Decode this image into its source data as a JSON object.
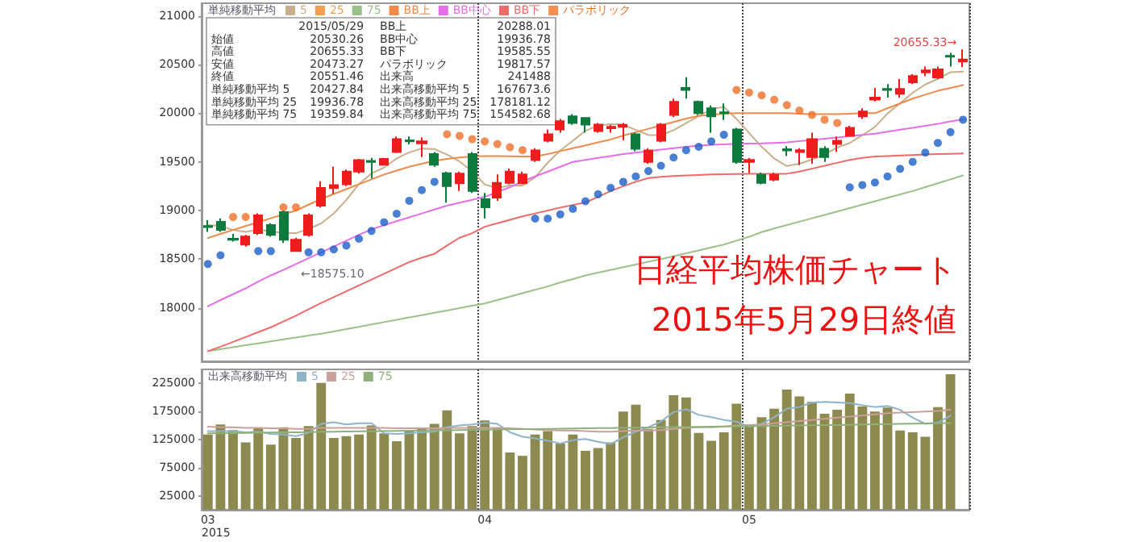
{
  "chart_data": [
    {
      "type": "candlestick",
      "title": "日経平均株価チャート",
      "subtitle": "2015年5月29日終値",
      "categories": [
        "03",
        null,
        null,
        null,
        null,
        null,
        null,
        null,
        null,
        null,
        null,
        null,
        null,
        null,
        null,
        null,
        null,
        null,
        null,
        null,
        null,
        null,
        "04",
        null,
        null,
        null,
        null,
        null,
        null,
        null,
        null,
        null,
        null,
        null,
        null,
        null,
        null,
        null,
        null,
        null,
        null,
        null,
        null,
        "05",
        null,
        null,
        null,
        null,
        null,
        null,
        null,
        null,
        null,
        null,
        null,
        null,
        null,
        null,
        null,
        null,
        null
      ],
      "ohlc": [
        [
          18840,
          18900,
          18780,
          18830
        ],
        [
          18883,
          18920,
          18780,
          18800
        ],
        [
          18710,
          18760,
          18680,
          18700
        ],
        [
          18650,
          18750,
          18630,
          18733
        ],
        [
          18767,
          18970,
          18750,
          18950
        ],
        [
          18850,
          18870,
          18730,
          18750
        ],
        [
          18983,
          19000,
          18667,
          18700
        ],
        [
          18583,
          18720,
          18575.1,
          18700
        ],
        [
          18750,
          18970,
          18730,
          18950
        ],
        [
          19050,
          19300,
          19030,
          19233
        ],
        [
          19230,
          19450,
          19170,
          19260
        ],
        [
          19270,
          19420,
          19250,
          19400
        ],
        [
          19400,
          19530,
          19380,
          19517
        ],
        [
          19510,
          19540,
          19330,
          19500
        ],
        [
          19470,
          19540,
          19460,
          19530
        ],
        [
          19600,
          19760,
          19590,
          19733
        ],
        [
          19720,
          19760,
          19680,
          19710
        ],
        [
          19690,
          19750,
          19550,
          19710
        ],
        [
          19580,
          19600,
          19450,
          19470
        ],
        [
          19383,
          19400,
          19080,
          19250
        ],
        [
          19280,
          19400,
          19200,
          19380
        ],
        [
          19580,
          19600,
          19180,
          19200
        ],
        [
          19116,
          19180,
          18920,
          19033
        ],
        [
          19133,
          19370,
          19100,
          19283
        ],
        [
          19283,
          19430,
          19270,
          19400
        ],
        [
          19280,
          19400,
          19270,
          19370
        ],
        [
          19517,
          19640,
          19500,
          19617
        ],
        [
          19717,
          19830,
          19700,
          19783
        ],
        [
          19833,
          19940,
          19800,
          19917
        ],
        [
          19967,
          19990,
          19880,
          19900
        ],
        [
          19950,
          19960,
          19800,
          19883
        ],
        [
          19817,
          19900,
          19800,
          19883
        ],
        [
          19845,
          19880,
          19800,
          19860
        ],
        [
          19860,
          19900,
          19720,
          19880
        ],
        [
          19783,
          19800,
          19610,
          19633
        ],
        [
          19500,
          19640,
          19480,
          19617
        ],
        [
          19717,
          19900,
          19700,
          19883
        ],
        [
          19983,
          20150,
          19960,
          20117
        ],
        [
          20260,
          20370,
          20150,
          20240
        ],
        [
          20117,
          20130,
          19980,
          20000
        ],
        [
          20050,
          20080,
          19800,
          19967
        ],
        [
          20010,
          20100,
          19930,
          20000
        ],
        [
          19833,
          19850,
          19480,
          19500
        ],
        [
          19500,
          19540,
          19383,
          19520
        ],
        [
          19367,
          19390,
          19270,
          19283
        ],
        [
          19317,
          19390,
          19300,
          19367
        ],
        [
          19630,
          19660,
          19560,
          19617
        ],
        [
          19600,
          19640,
          19467,
          19620
        ],
        [
          19550,
          19800,
          19480,
          19733
        ],
        [
          19633,
          19660,
          19500,
          19550
        ],
        [
          19683,
          19760,
          19600,
          19717
        ],
        [
          19767,
          19870,
          19760,
          19850
        ],
        [
          19967,
          20050,
          19940,
          20017
        ],
        [
          20140,
          20260,
          20120,
          20160
        ],
        [
          20250,
          20300,
          20160,
          20240
        ],
        [
          20200,
          20350,
          20160,
          20250
        ],
        [
          20317,
          20400,
          20300,
          20383
        ],
        [
          20420,
          20480,
          20380,
          20440
        ],
        [
          20367,
          20480,
          20350,
          20450
        ],
        [
          20590,
          20620,
          20480,
          20580
        ],
        [
          20530.26,
          20655.33,
          20473.27,
          20551.46
        ]
      ],
      "colors": [
        "#0d7a3e",
        "#0d7a3e",
        "#0d7a3e",
        "#ee1c1c",
        "#ee1c1c",
        "#0d7a3e",
        "#0d7a3e",
        "#ee1c1c",
        "#ee1c1c",
        "#ee1c1c",
        "#ee1c1c",
        "#ee1c1c",
        "#ee1c1c",
        "#0d7a3e",
        "#ee1c1c",
        "#ee1c1c",
        "#0d7a3e",
        "#ee1c1c",
        "#0d7a3e",
        "#0d7a3e",
        "#ee1c1c",
        "#0d7a3e",
        "#0d7a3e",
        "#ee1c1c",
        "#ee1c1c",
        "#ee1c1c",
        "#ee1c1c",
        "#ee1c1c",
        "#ee1c1c",
        "#0d7a3e",
        "#0d7a3e",
        "#ee1c1c",
        "#ee1c1c",
        "#ee1c1c",
        "#0d7a3e",
        "#ee1c1c",
        "#ee1c1c",
        "#ee1c1c",
        "#0d7a3e",
        "#0d7a3e",
        "#0d7a3e",
        "#0d7a3e",
        "#0d7a3e",
        "#ee1c1c",
        "#0d7a3e",
        "#ee1c1c",
        "#0d7a3e",
        "#ee1c1c",
        "#ee1c1c",
        "#0d7a3e",
        "#ee1c1c",
        "#ee1c1c",
        "#ee1c1c",
        "#ee1c1c",
        "#0d7a3e",
        "#ee1c1c",
        "#ee1c1c",
        "#ee1c1c",
        "#ee1c1c",
        "#0d7a3e",
        "#ee1c1c"
      ],
      "series": [
        {
          "type": "line",
          "name": "5",
          "color": "#c8b08c",
          "values": [
            18850,
            18840,
            18800,
            18780,
            18803,
            18787,
            18767,
            18767,
            18810,
            18867,
            18969,
            19109,
            19272,
            19382,
            19441,
            19536,
            19598,
            19637,
            19631,
            19575,
            19504,
            19402,
            19267,
            19229,
            19259,
            19257,
            19341,
            19491,
            19617,
            19717,
            19820,
            19873,
            19889,
            19881,
            19828,
            19775,
            19775,
            19826,
            19898,
            19971,
            20041,
            20065,
            19941,
            19797,
            19654,
            19534,
            19457,
            19481,
            19524,
            19577,
            19647,
            19694,
            19773,
            19859,
            19997,
            20103,
            20210,
            20295,
            20353,
            20421,
            20427.84
          ]
        },
        {
          "type": "line",
          "name": "25",
          "color": "#f0a050",
          "values": [
            null,
            null,
            null,
            null,
            null,
            null,
            null,
            null,
            null,
            null,
            null,
            null,
            null,
            null,
            null,
            null,
            null,
            null,
            null,
            null,
            null,
            null,
            null,
            null,
            null,
            null,
            null,
            null,
            null,
            null,
            null,
            null,
            null,
            null,
            null,
            null,
            null,
            null,
            null,
            null,
            null,
            null,
            null,
            null,
            null,
            null,
            null,
            null,
            null,
            null,
            null,
            null,
            null,
            null,
            null,
            null,
            null,
            null,
            null,
            null,
            null
          ]
        },
        {
          "type": "line",
          "name": "75",
          "color": "#9cc08a",
          "values": [
            17555,
            17575,
            17595,
            17615,
            17635,
            17655,
            17675,
            17695,
            17715,
            17733,
            17757,
            17781,
            17805,
            17829,
            17853,
            17877,
            17901,
            17925,
            17949,
            17973,
            17997,
            18021,
            18045,
            18080,
            18115,
            18150,
            18185,
            18220,
            18260,
            18296,
            18333,
            18361,
            18389,
            18417,
            18445,
            18473,
            18500,
            18530,
            18560,
            18590,
            18620,
            18650,
            18690,
            18730,
            18778,
            18815,
            18850,
            18885,
            18920,
            18955,
            18990,
            19025,
            19060,
            19095,
            19130,
            19165,
            19200,
            19240,
            19280,
            19320,
            19359.84
          ]
        },
        {
          "type": "line",
          "name": "BB上",
          "color": "#f08a4a",
          "values": [
            18717,
            18760,
            18800,
            18840,
            18880,
            18920,
            18960,
            19000,
            19060,
            19117,
            19170,
            19220,
            19270,
            19320,
            19370,
            19410,
            19450,
            19480,
            19510,
            19530,
            19545,
            19555,
            19560,
            19560,
            19558,
            19556,
            19555,
            19580,
            19610,
            19640,
            19670,
            19700,
            19730,
            19770,
            19805,
            19840,
            19875,
            19910,
            19945,
            19972,
            19985,
            19995,
            20000,
            20000,
            20000,
            20000,
            20000,
            19995,
            19990,
            19990,
            19990,
            19995,
            20000,
            20000,
            20050,
            20100,
            20150,
            20190,
            20230,
            20260,
            20288.01
          ]
        },
        {
          "type": "line",
          "name": "BB中心",
          "color": "#e66ee6",
          "values": [
            18017,
            18080,
            18140,
            18200,
            18270,
            18333,
            18390,
            18450,
            18510,
            18570,
            18630,
            18690,
            18750,
            18806,
            18850,
            18890,
            18930,
            18970,
            19010,
            19050,
            19080,
            19110,
            19140,
            19190,
            19240,
            19300,
            19350,
            19400,
            19450,
            19500,
            19520,
            19540,
            19560,
            19580,
            19595,
            19610,
            19625,
            19640,
            19655,
            19667,
            19675,
            19680,
            19685,
            19688,
            19690,
            19695,
            19700,
            19712,
            19725,
            19738,
            19750,
            19765,
            19777,
            19789,
            19810,
            19830,
            19850,
            19870,
            19890,
            19915,
            19936.78
          ]
        },
        {
          "type": "line",
          "name": "BB下",
          "color": "#f06a6a",
          "values": [
            17555,
            17600,
            17650,
            17700,
            17750,
            17800,
            17860,
            17920,
            17985,
            18050,
            18110,
            18170,
            18230,
            18290,
            18350,
            18410,
            18470,
            18515,
            18555,
            18640,
            18720,
            18767,
            18833,
            18870,
            18905,
            18940,
            18970,
            19000,
            19030,
            19057,
            19083,
            19140,
            19200,
            19250,
            19295,
            19333,
            19345,
            19355,
            19360,
            19365,
            19370,
            19372,
            19374,
            19376,
            19378,
            19378,
            19378,
            19400,
            19430,
            19460,
            19490,
            19520,
            19540,
            19555,
            19560,
            19565,
            19570,
            19575,
            19580,
            19583,
            19585.55
          ]
        },
        {
          "type": "scatter",
          "name": "パラボリック",
          "color": "#f07028",
          "values": [
            18450,
            18540,
            18933,
            18933,
            18583,
            18583,
            19033,
            19033,
            18570,
            18570,
            18600,
            18640,
            18710,
            18790,
            18880,
            18967,
            19100,
            19210,
            19295,
            19783,
            19767,
            19733,
            19710,
            19683,
            19650,
            19620,
            18917,
            18917,
            18960,
            19017,
            19095,
            19167,
            19233,
            19295,
            19350,
            19405,
            19460,
            19545,
            19620,
            19655,
            19710,
            19778,
            20238,
            20212,
            20183,
            20138,
            20083,
            20028,
            19983,
            19933,
            19900,
            19238,
            19262,
            19288,
            19350,
            19428,
            19500,
            19595,
            19695,
            19805,
            19933
          ],
          "colors": [
            "#1a5fc8",
            "#1a5fc8",
            "#f07028",
            "#f07028",
            "#1a5fc8",
            "#1a5fc8",
            "#f07028",
            "#f07028",
            "#1a5fc8",
            "#1a5fc8",
            "#1a5fc8",
            "#1a5fc8",
            "#1a5fc8",
            "#1a5fc8",
            "#1a5fc8",
            "#1a5fc8",
            "#1a5fc8",
            "#1a5fc8",
            "#1a5fc8",
            "#f07028",
            "#f07028",
            "#f07028",
            "#f07028",
            "#f07028",
            "#f07028",
            "#f07028",
            "#1a5fc8",
            "#1a5fc8",
            "#1a5fc8",
            "#1a5fc8",
            "#1a5fc8",
            "#1a5fc8",
            "#1a5fc8",
            "#1a5fc8",
            "#1a5fc8",
            "#1a5fc8",
            "#1a5fc8",
            "#1a5fc8",
            "#1a5fc8",
            "#1a5fc8",
            "#1a5fc8",
            "#1a5fc8",
            "#f07028",
            "#f07028",
            "#f07028",
            "#f07028",
            "#f07028",
            "#f07028",
            "#f07028",
            "#f07028",
            "#f07028",
            "#1a5fc8",
            "#1a5fc8",
            "#1a5fc8",
            "#1a5fc8",
            "#1a5fc8",
            "#1a5fc8",
            "#1a5fc8",
            "#1a5fc8",
            "#1a5fc8",
            "#1a5fc8"
          ]
        }
      ],
      "ylim": [
        17450,
        21130
      ],
      "yticks": [
        18000,
        18500,
        19000,
        19500,
        20000,
        20500,
        21000
      ],
      "grid": "x",
      "legend": "top left",
      "legend_title": "単純移動平均",
      "tick_labels": "y",
      "annotations": [
        "2015/05/29",
        "始値\t20530.26",
        "高値\t20655.33",
        "安値\t20473.27",
        "終値\t20551.46",
        "単純移動平均 5\t20427.84",
        "単純移動平均 25\t19936.78",
        "単純移動平均 75\t19359.84",
        "BB上\t20288.01",
        "BB中心\t19936.78",
        "BB下\t19585.55",
        "パラボリック\t19817.57",
        "出来高\t241488",
        "出来高移動平均 5\t167673.6",
        "出来高移動平均 25\t178181.12",
        "出来高移動平均 75\t154582.68",
        "20655.33→",
        "←18575.10"
      ]
    },
    {
      "type": "bar",
      "categories": [
        "03",
        null,
        null,
        null,
        null,
        null,
        null,
        null,
        null,
        null,
        null,
        null,
        null,
        null,
        null,
        null,
        null,
        null,
        null,
        null,
        null,
        null,
        "04",
        null,
        null,
        null,
        null,
        null,
        null,
        null,
        null,
        null,
        null,
        null,
        null,
        null,
        null,
        null,
        null,
        null,
        null,
        null,
        null,
        "05",
        null,
        null,
        null,
        null,
        null,
        null,
        null,
        null,
        null,
        null,
        null,
        null,
        null,
        null,
        null,
        null,
        null
      ],
      "series": [
        {
          "type": "bar",
          "color": "#8c8a4e",
          "values": [
            134000,
            152000,
            142000,
            120000,
            146000,
            116000,
            147000,
            128000,
            149000,
            226000,
            128000,
            131000,
            134000,
            150000,
            136000,
            122000,
            140000,
            144000,
            153000,
            177000,
            136000,
            149000,
            159000,
            145000,
            102000,
            96000,
            134000,
            140000,
            118000,
            134000,
            105000,
            110000,
            120000,
            175000,
            187000,
            144000,
            160000,
            204000,
            200000,
            137000,
            123000,
            138000,
            189000,
            152000,
            165000,
            180000,
            214000,
            202000,
            192000,
            171000,
            178000,
            207000,
            184000,
            175000,
            182000,
            141000,
            138000,
            130000,
            183000,
            241488,
            null
          ]
        },
        {
          "type": "line",
          "name": "5",
          "color": "#8fb4c8",
          "values": [
            140000,
            140000,
            140000,
            138000,
            139000,
            135000,
            134000,
            131000,
            137000,
            153000,
            156000,
            152000,
            154000,
            154000,
            136000,
            135000,
            136000,
            138000,
            139000,
            147000,
            150000,
            152000,
            155000,
            153000,
            138000,
            130000,
            127000,
            123000,
            118000,
            124000,
            126000,
            121000,
            117000,
            129000,
            139000,
            147000,
            157000,
            174000,
            179000,
            169000,
            165000,
            160000,
            157000,
            148000,
            153000,
            165000,
            180000,
            183000,
            191000,
            192000,
            191000,
            190000,
            186000,
            183000,
            185000,
            178000,
            164000,
            153000,
            155000,
            167673.6,
            null
          ]
        },
        {
          "type": "line",
          "name": "25",
          "color": "#c9a09a",
          "values": [
            148000,
            147000,
            147000,
            146000,
            146000,
            145000,
            145000,
            144000,
            144000,
            146000,
            146000,
            146000,
            146000,
            146000,
            146000,
            145000,
            145000,
            145000,
            145000,
            146000,
            146000,
            146000,
            146000,
            146000,
            145000,
            144000,
            143000,
            142000,
            141000,
            141000,
            140000,
            139000,
            139000,
            140000,
            141000,
            141000,
            142000,
            144000,
            146000,
            147000,
            147000,
            148000,
            150000,
            151000,
            152000,
            154000,
            156000,
            158000,
            160000,
            162000,
            164000,
            166000,
            168000,
            170000,
            172000,
            173000,
            174000,
            175000,
            176000,
            178181.12,
            null
          ]
        },
        {
          "type": "line",
          "name": "75",
          "color": "#8fb07a",
          "values": [
            136000,
            136300,
            136600,
            136900,
            137200,
            137500,
            137800,
            138100,
            138400,
            138700,
            139000,
            139300,
            139600,
            139900,
            140200,
            140500,
            140800,
            141100,
            141400,
            141700,
            142000,
            142300,
            142600,
            142900,
            143200,
            143500,
            143800,
            144100,
            144400,
            144700,
            145000,
            145300,
            145600,
            145900,
            146200,
            146500,
            146800,
            147100,
            147400,
            147700,
            148000,
            148300,
            148600,
            148900,
            149200,
            149500,
            149800,
            150100,
            150400,
            150700,
            151000,
            151400,
            151800,
            152200,
            152600,
            153000,
            153400,
            153800,
            154200,
            154582.68,
            null
          ]
        }
      ],
      "ylim": [
        0,
        250000
      ],
      "yticks": [
        25000,
        75000,
        125000,
        175000,
        225000
      ],
      "grid": "x",
      "legend": "top left",
      "legend_title": "出来高移動平均",
      "annotations": [
        "2015"
      ]
    }
  ]
}
